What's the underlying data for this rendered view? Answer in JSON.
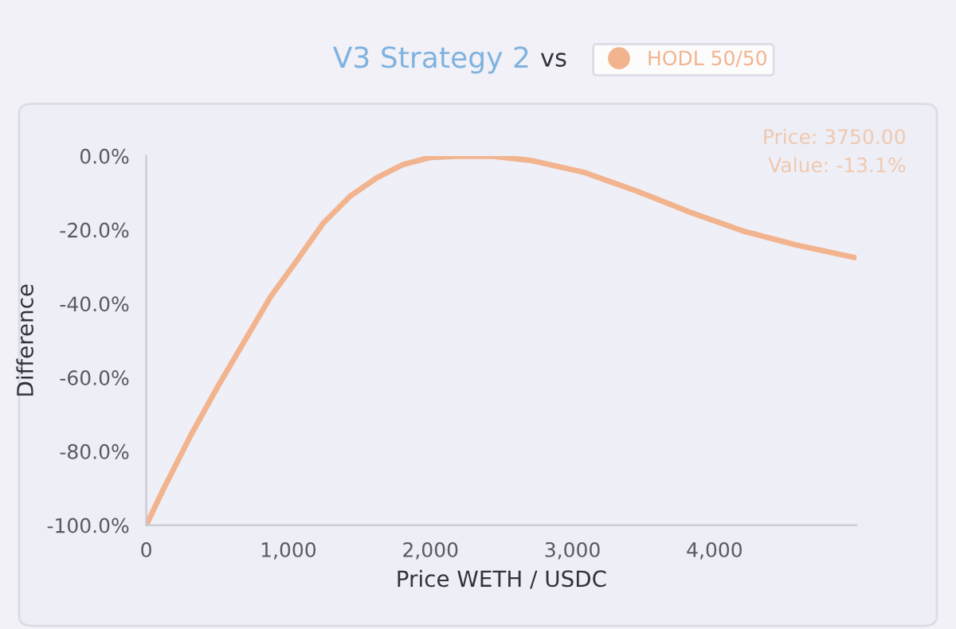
{
  "chart_data": {
    "type": "line",
    "title": "V3 Strategy 2",
    "subtitle": "vs",
    "xlabel": "Price WETH / USDC",
    "ylabel": "Difference",
    "x": [
      0,
      125,
      314,
      501,
      687,
      874,
      1062,
      1248,
      1435,
      1622,
      1808,
      1996,
      2220,
      2444,
      2706,
      3079,
      3453,
      3827,
      4200,
      4574,
      4985
    ],
    "series": [
      {
        "name": "HODL 50/50",
        "color": "#f2b48e",
        "values": [
          -100,
          -89.9,
          -75.6,
          -62.6,
          -50.4,
          -38.2,
          -28.2,
          -18.1,
          -10.9,
          -5.9,
          -2.3,
          -0.4,
          0,
          -0.1,
          -1.2,
          -4.4,
          -9.5,
          -15.2,
          -20.3,
          -24.1,
          -27.5
        ]
      }
    ],
    "xlim": [
      0,
      5000
    ],
    "xticks": [
      {
        "value": 0,
        "label": "0"
      },
      {
        "value": 1000,
        "label": "1,000"
      },
      {
        "value": 2000,
        "label": "2,000"
      },
      {
        "value": 3000,
        "label": "3,000"
      },
      {
        "value": 4000,
        "label": "4,000"
      }
    ],
    "ylim": [
      -100,
      0
    ],
    "yticks": [
      {
        "value": 0,
        "label": "0.0%"
      },
      {
        "value": -20,
        "label": "-20.0%"
      },
      {
        "value": -40,
        "label": "-40.0%"
      },
      {
        "value": -60,
        "label": "-60.0%"
      },
      {
        "value": -80,
        "label": "-80.0%"
      },
      {
        "value": -100,
        "label": "-100.0%"
      }
    ],
    "annotations": [
      "Price: 3750.00",
      "Value: -13.1%"
    ],
    "legend": "top",
    "grid": false,
    "marker": "none",
    "line_style": "solid"
  }
}
